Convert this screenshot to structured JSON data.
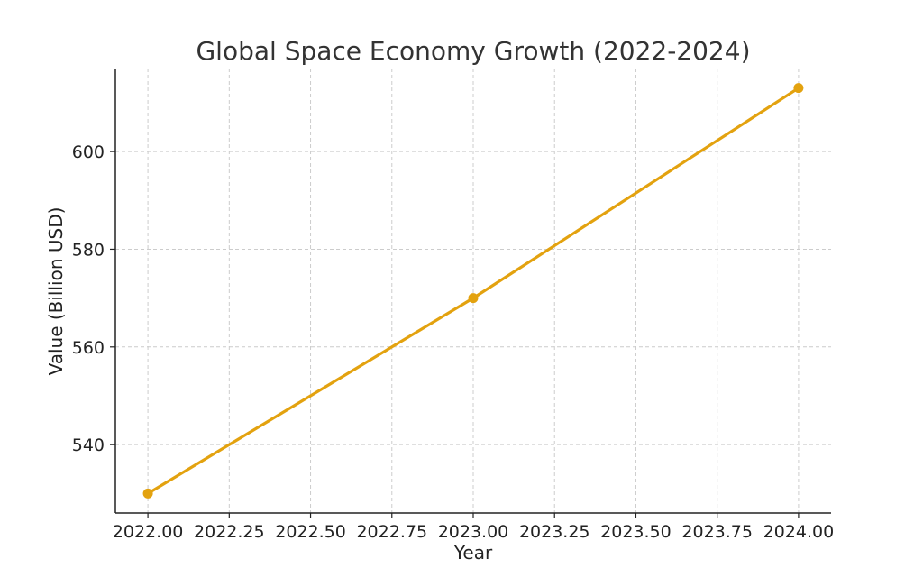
{
  "chart_data": {
    "type": "line",
    "title": "Global Space Economy Growth (2022-2024)",
    "xlabel": "Year",
    "ylabel": "Value (Billion USD)",
    "x": [
      2022,
      2023,
      2024
    ],
    "series": [
      {
        "values": [
          530,
          570,
          613
        ]
      }
    ],
    "xlim": [
      2021.9,
      2024.1
    ],
    "ylim": [
      526,
      617
    ],
    "x_ticks": [
      "2022.00",
      "2022.25",
      "2022.50",
      "2022.75",
      "2023.00",
      "2023.25",
      "2023.50",
      "2023.75",
      "2024.00"
    ],
    "y_ticks": [
      "540",
      "560",
      "580",
      "600"
    ],
    "grid": true,
    "line_color": "#e3a20f"
  }
}
